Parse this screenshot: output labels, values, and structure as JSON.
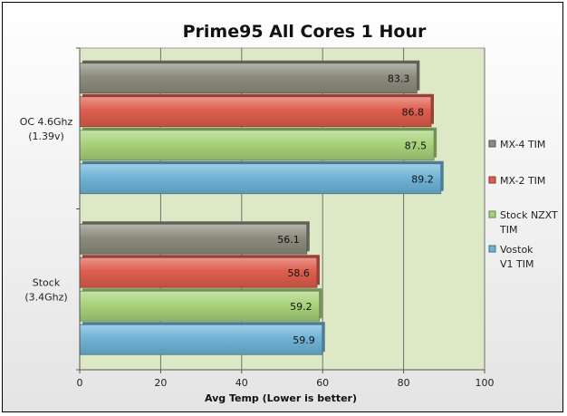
{
  "chart_data": {
    "type": "bar",
    "orientation": "horizontal",
    "title": "Prime95 All Cores 1 Hour",
    "xlabel": "Avg Temp (Lower is better)",
    "ylabel": "",
    "xlim": [
      0,
      100
    ],
    "xticks": [
      0,
      20,
      40,
      60,
      80,
      100
    ],
    "grid": true,
    "legend_position": "right",
    "plot_background": "#dde9c6",
    "categories": [
      [
        "OC 4.6Ghz",
        "(1.39v)"
      ],
      [
        "Stock",
        "(3.4Ghz)"
      ]
    ],
    "series": [
      {
        "name": [
          "MX-4 TIM"
        ],
        "color": "#8c8c7e",
        "values": [
          83.3,
          56.1
        ]
      },
      {
        "name": [
          "MX-2 TIM"
        ],
        "color": "#de5e4e",
        "values": [
          86.8,
          58.6
        ]
      },
      {
        "name": [
          "Stock NZXT",
          "TIM"
        ],
        "color": "#a8d27a",
        "values": [
          87.5,
          59.2
        ]
      },
      {
        "name": [
          "Vostok",
          "V1 TIM"
        ],
        "color": "#6fb4d6",
        "values": [
          89.2,
          59.9
        ]
      }
    ]
  }
}
